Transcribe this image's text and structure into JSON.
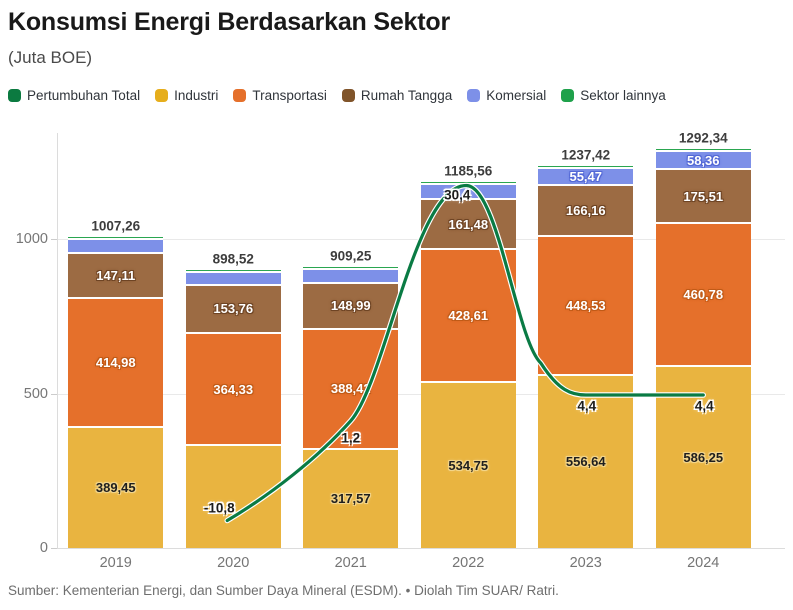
{
  "title": "Konsumsi Energi Berdasarkan Sektor",
  "subtitle": "(Juta BOE)",
  "source": "Sumber: Kementerian Energi, dan Sumber Daya Mineral (ESDM). • Diolah Tim SUAR/ Ratri.",
  "colors": {
    "industri": "#E9B440",
    "transportasi": "#E5702B",
    "rumah_tangga": "#9C6B43",
    "komersial": "#7D90E8",
    "sektor_lainnya": "#2AA650",
    "pertumbuhan_line": "#0A7B44",
    "grid": "#E9E9E9",
    "axis_text": "#757575",
    "total_text": "#3D3D3D"
  },
  "legend": [
    {
      "label": "Pertumbuhan Total",
      "color": "#0B7A40"
    },
    {
      "label": "Industri",
      "color": "#E6AE1C"
    },
    {
      "label": "Transportasi",
      "color": "#E5702B"
    },
    {
      "label": "Rumah Tangga",
      "color": "#80542A"
    },
    {
      "label": "Komersial",
      "color": "#7D90E8"
    },
    {
      "label": "Sektor lainnya",
      "color": "#1FA14B"
    }
  ],
  "chart_data": {
    "type": "bar",
    "subtype": "stacked-columns-with-growth-line",
    "title": "Konsumsi Energi Berdasarkan Sektor",
    "unit": "Juta BOE",
    "categories": [
      "2019",
      "2020",
      "2021",
      "2022",
      "2023",
      "2024"
    ],
    "series": [
      {
        "name": "Industri",
        "color": "#E9B440",
        "label_style": "on-yellow",
        "values": [
          389.45,
          329.0,
          317.57,
          534.75,
          556.64,
          586.25
        ],
        "labels": [
          "389,45",
          "",
          "317,57",
          "534,75",
          "556,64",
          "586,25"
        ]
      },
      {
        "name": "Transportasi",
        "color": "#E5702B",
        "label_style": "on-orange",
        "values": [
          414.98,
          364.33,
          388.42,
          428.61,
          448.53,
          460.78
        ],
        "labels": [
          "414,98",
          "364,33",
          "388,42",
          "428,61",
          "448,53",
          "460,78"
        ]
      },
      {
        "name": "Rumah Tangga",
        "color": "#9C6B43",
        "label_style": "on-brown",
        "values": [
          147.11,
          153.76,
          148.99,
          161.48,
          166.16,
          175.51
        ],
        "labels": [
          "147,11",
          "153,76",
          "148,99",
          "161,48",
          "166,16",
          "175,51"
        ]
      },
      {
        "name": "Komersial",
        "color": "#7D90E8",
        "label_style": "on-blue",
        "values": [
          45.72,
          42.0,
          44.0,
          50.0,
          55.47,
          58.36
        ],
        "labels": [
          "",
          "",
          "",
          "",
          "55,47",
          "58,36"
        ]
      },
      {
        "name": "Sektor lainnya",
        "color": "#2AA650",
        "label_style": "on-green",
        "values": [
          10.0,
          9.43,
          10.27,
          10.72,
          10.62,
          11.44
        ],
        "labels": [
          "",
          "",
          "",
          "",
          "",
          ""
        ]
      }
    ],
    "totals": {
      "values": [
        1007.26,
        898.52,
        909.25,
        1185.56,
        1237.42,
        1292.34
      ],
      "labels": [
        "1007,26",
        "898,52",
        "909,25",
        "1185,56",
        "1237,42",
        "1292,34"
      ]
    },
    "line_series": {
      "name": "Pertumbuhan Total",
      "unit": "%",
      "color": "#0A7B44",
      "values": [
        null,
        -10.8,
        1.2,
        30.4,
        4.4,
        4.4
      ],
      "labels": [
        "",
        "-10,8",
        "1,2",
        "30,4",
        "4,4",
        "4,4"
      ]
    },
    "y_axis": {
      "ticks": [
        0,
        500,
        1000
      ],
      "tick_labels": [
        "0",
        "500",
        "1000"
      ],
      "range": [
        0,
        1345
      ]
    },
    "grid": true,
    "legend_position": "top"
  }
}
